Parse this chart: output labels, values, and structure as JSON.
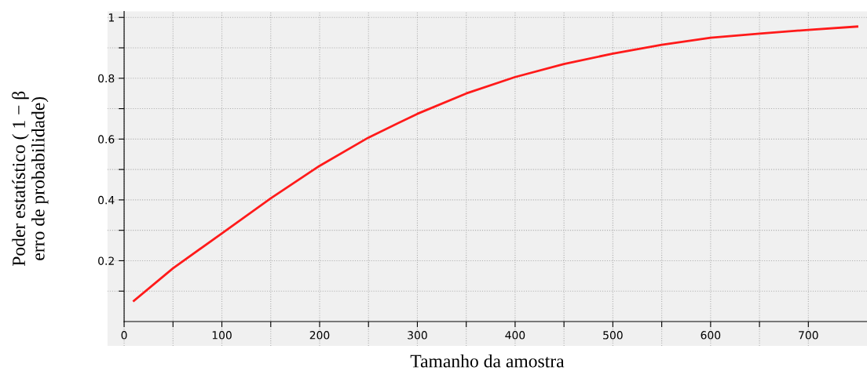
{
  "chart_data": {
    "type": "line",
    "xlabel": "Tamanho da amostra",
    "ylabel": "Poder estatístico ( 1 − β\nerro de probabilidade)",
    "x": [
      10,
      50,
      100,
      150,
      200,
      250,
      300,
      350,
      400,
      450,
      500,
      550,
      600,
      650,
      700,
      750
    ],
    "series": [
      {
        "color": "#ff1a1a",
        "values": [
          0.068,
          0.175,
          0.29,
          0.405,
          0.512,
          0.605,
          0.683,
          0.75,
          0.804,
          0.847,
          0.881,
          0.91,
          0.933,
          0.947,
          0.959,
          0.97
        ]
      }
    ],
    "xlim": [
      -17,
      760
    ],
    "ylim": [
      -0.08,
      1.02
    ],
    "xticks": [
      0,
      {
        "value": 50,
        "label": null
      },
      100,
      {
        "value": 150,
        "label": null
      },
      200,
      {
        "value": 250,
        "label": null
      },
      300,
      {
        "value": 350,
        "label": null
      },
      400,
      {
        "value": 450,
        "label": null
      },
      500,
      {
        "value": 550,
        "label": null
      },
      600,
      {
        "value": 650,
        "label": null
      },
      700
    ],
    "yticks": [
      {
        "value": 0.1,
        "label": null
      },
      0.2,
      {
        "value": 0.3,
        "label": null
      },
      0.4,
      {
        "value": 0.5,
        "label": null
      },
      0.6,
      {
        "value": 0.7,
        "label": null
      },
      0.8,
      {
        "value": 0.9,
        "label": null
      },
      1
    ],
    "grid": true,
    "marker": "none",
    "line_style": "solid"
  }
}
